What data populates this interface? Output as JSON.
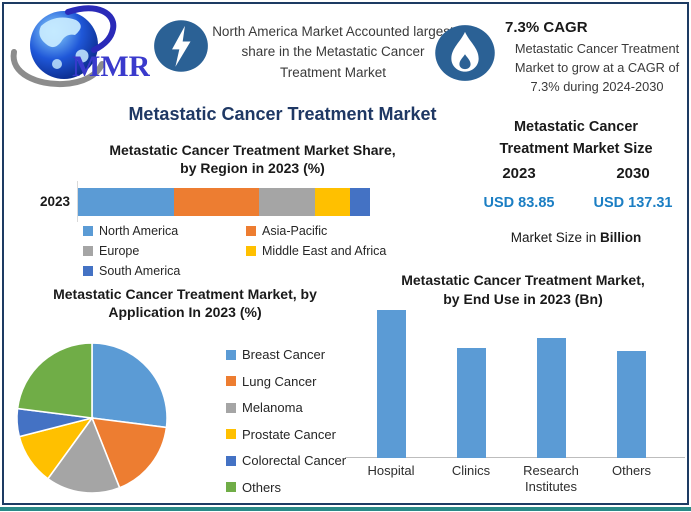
{
  "brand": {
    "logo_text": "MMR"
  },
  "header": {
    "highlight": {
      "icon": "lightning-bolt-icon",
      "text": "North America Market Accounted largest share in the Metastatic Cancer Treatment Market"
    },
    "cagr": {
      "icon": "flame-icon",
      "title": "7.3% CAGR",
      "text": "Metastatic Cancer Treatment Market to grow at a CAGR of 7.3% during 2024-2030"
    }
  },
  "main_title": "Metastatic Cancer Treatment Market",
  "market_size": {
    "title_line1": "Metastatic Cancer",
    "title_line2": "Treatment Market Size",
    "year_start": "2023",
    "year_end": "2030",
    "value_start": "USD 83.85",
    "value_end": "USD 137.31",
    "caption_prefix": "Market Size in ",
    "caption_bold": "Billion",
    "value_color": "#1b7ec3"
  },
  "chart_data": [
    {
      "id": "region_share",
      "type": "bar",
      "subtype": "stacked-horizontal",
      "title": "Metastatic Cancer Treatment Market Share, by Region in 2023 (%)",
      "title_line1": "Metastatic Cancer Treatment Market Share,",
      "title_line2": "by Region in 2023 (%)",
      "category": "2023",
      "unit": "%",
      "legend_position": "bottom",
      "series": [
        {
          "name": "North America",
          "value": 33,
          "color": "#5B9BD5"
        },
        {
          "name": "Asia-Pacific",
          "value": 29,
          "color": "#ED7D31"
        },
        {
          "name": "Europe",
          "value": 19,
          "color": "#A5A5A5"
        },
        {
          "name": "Middle East and Africa",
          "value": 12,
          "color": "#FFC000"
        },
        {
          "name": "South America",
          "value": 7,
          "color": "#4472C4"
        }
      ]
    },
    {
      "id": "application_share",
      "type": "pie",
      "title": "Metastatic Cancer Treatment Market, by Application In 2023 (%)",
      "title_line1": "Metastatic Cancer Treatment Market, by",
      "title_line2": "Application In 2023 (%)",
      "unit": "%",
      "start_angle_deg": 0,
      "legend_position": "right",
      "slices": [
        {
          "name": "Breast Cancer",
          "value": 27,
          "color": "#5B9BD5"
        },
        {
          "name": "Lung Cancer",
          "value": 17,
          "color": "#ED7D31"
        },
        {
          "name": "Melanoma",
          "value": 16,
          "color": "#A5A5A5"
        },
        {
          "name": "Prostate Cancer",
          "value": 11,
          "color": "#FFC000"
        },
        {
          "name": "Colorectal Cancer",
          "value": 6,
          "color": "#4472C4"
        },
        {
          "name": "Others",
          "value": 23,
          "color": "#70AD47"
        }
      ]
    },
    {
      "id": "end_use",
      "type": "bar",
      "subtype": "column",
      "title": "Metastatic Cancer Treatment Market, by End Use in 2023 (Bn)",
      "title_line1": "Metastatic Cancer Treatment Market,",
      "title_line2": "by End Use in 2023 (Bn)",
      "unit": "Bn",
      "values_estimated": true,
      "bar_color": "#5B9BD5",
      "categories": [
        "Hospital",
        "Clinics",
        "Research Institutes",
        "Others"
      ],
      "values": [
        25.6,
        19.0,
        20.8,
        18.5
      ]
    }
  ]
}
